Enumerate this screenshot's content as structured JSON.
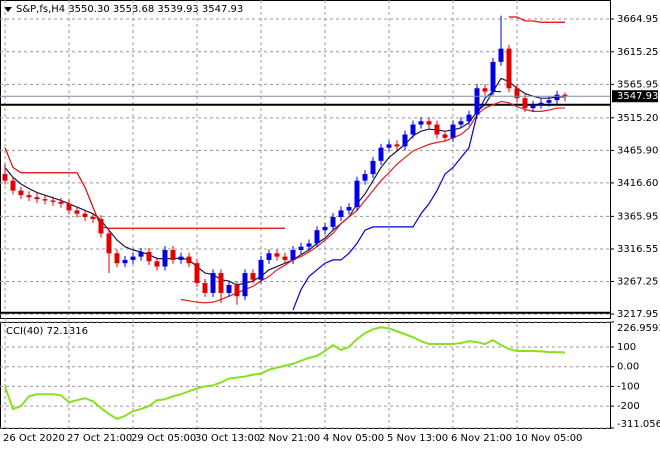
{
  "chart_data": [
    {
      "type": "candlestick",
      "title": "S&P,fs,H4  3550.30 3553.68 3539.93 3547.93",
      "categories": [
        "26 Oct 2020",
        null,
        null,
        null,
        null,
        null,
        null,
        null,
        "27 Oct 21:00",
        null,
        null,
        null,
        null,
        null,
        null,
        null,
        "29 Oct 05:00",
        null,
        null,
        null,
        null,
        null,
        null,
        null,
        "30 Oct 13:00",
        null,
        null,
        null,
        null,
        null,
        null,
        null,
        "2 Nov 21:00",
        null,
        null,
        null,
        null,
        null,
        null,
        null,
        "4 Nov 05:00",
        null,
        null,
        null,
        null,
        null,
        null,
        null,
        "5 Nov 13:00",
        null,
        null,
        null,
        null,
        null,
        null,
        null,
        "6 Nov 21:00",
        null,
        null,
        null,
        null,
        null,
        null,
        null,
        "10 Nov 05:00",
        null,
        null,
        null,
        null,
        null,
        null
      ],
      "open": [
        3430,
        3420,
        3405,
        3398,
        3395,
        3392,
        3390,
        3388,
        3385,
        3375,
        3370,
        3365,
        3362,
        3340,
        3310,
        3295,
        3300,
        3305,
        3312,
        3298,
        3290,
        3315,
        3300,
        3305,
        3295,
        3265,
        3250,
        3280,
        3250,
        3262,
        3245,
        3280,
        3270,
        3300,
        3310,
        3305,
        3300,
        3315,
        3320,
        3325,
        3345,
        3350,
        3365,
        3375,
        3380,
        3420,
        3430,
        3450,
        3470,
        3475,
        3472,
        3490,
        3505,
        3510,
        3505,
        3490,
        3485,
        3505,
        3510,
        3520,
        3560,
        3555,
        3600,
        3620,
        3560,
        3545,
        3530,
        3535,
        3538,
        3542,
        3550.3
      ],
      "high": [
        3445,
        3426,
        3411,
        3404,
        3401,
        3398,
        3396,
        3394,
        3391,
        3381,
        3376,
        3371,
        3368,
        3346,
        3316,
        3306,
        3311,
        3318,
        3318,
        3304,
        3321,
        3321,
        3311,
        3311,
        3301,
        3271,
        3286,
        3286,
        3268,
        3268,
        3286,
        3286,
        3306,
        3316,
        3316,
        3311,
        3321,
        3326,
        3331,
        3351,
        3356,
        3371,
        3381,
        3386,
        3426,
        3436,
        3456,
        3476,
        3481,
        3481,
        3496,
        3511,
        3516,
        3516,
        3511,
        3496,
        3511,
        3516,
        3526,
        3566,
        3566,
        3606,
        3670,
        3626,
        3566,
        3551,
        3541,
        3544,
        3548,
        3556,
        3553.68
      ],
      "low": [
        3414,
        3399,
        3392,
        3389,
        3386,
        3384,
        3382,
        3379,
        3369,
        3364,
        3359,
        3356,
        3334,
        3280,
        3289,
        3289,
        3294,
        3299,
        3292,
        3284,
        3284,
        3294,
        3294,
        3289,
        3259,
        3244,
        3244,
        3235,
        3244,
        3232,
        3239,
        3264,
        3264,
        3294,
        3299,
        3294,
        3294,
        3309,
        3314,
        3319,
        3339,
        3344,
        3359,
        3369,
        3374,
        3414,
        3424,
        3444,
        3464,
        3466,
        3466,
        3484,
        3499,
        3499,
        3484,
        3479,
        3479,
        3499,
        3504,
        3514,
        3549,
        3549,
        3594,
        3554,
        3539,
        3524,
        3524,
        3529,
        3532,
        3536,
        3539.93
      ],
      "close": [
        3420,
        3405,
        3398,
        3395,
        3392,
        3390,
        3388,
        3385,
        3375,
        3370,
        3365,
        3362,
        3340,
        3310,
        3295,
        3300,
        3305,
        3312,
        3298,
        3290,
        3315,
        3300,
        3305,
        3295,
        3265,
        3250,
        3280,
        3250,
        3262,
        3245,
        3280,
        3270,
        3300,
        3310,
        3305,
        3300,
        3315,
        3320,
        3325,
        3345,
        3350,
        3365,
        3375,
        3380,
        3420,
        3430,
        3450,
        3470,
        3475,
        3472,
        3490,
        3505,
        3510,
        3505,
        3490,
        3485,
        3505,
        3510,
        3520,
        3560,
        3555,
        3600,
        3620,
        3560,
        3545,
        3530,
        3535,
        3538,
        3542,
        3550.3,
        3547.93
      ],
      "up_color": "#0000e0",
      "down_color": "#e00000",
      "overlays": [
        {
          "color": "#1a1a40",
          "values": [
            3440,
            3425,
            3415,
            3408,
            3402,
            3398,
            3394,
            3390,
            3385,
            3380,
            3375,
            3370,
            3360,
            3345,
            3330,
            3320,
            3315,
            3312,
            3308,
            3302,
            3302,
            3302,
            3303,
            3300,
            3290,
            3280,
            3278,
            3270,
            3268,
            3262,
            3265,
            3268,
            3275,
            3285,
            3290,
            3295,
            3300,
            3308,
            3315,
            3325,
            3333,
            3345,
            3355,
            3365,
            3385,
            3400,
            3420,
            3440,
            3455,
            3465,
            3475,
            3488,
            3495,
            3498,
            3497,
            3495,
            3497,
            3500,
            3508,
            3525,
            3535,
            3555,
            3575,
            3570,
            3560,
            3552,
            3548,
            3545,
            3545,
            3547,
            3547
          ]
        },
        {
          "color": "#e02020",
          "values": [
            null,
            null,
            null,
            null,
            null,
            null,
            null,
            null,
            null,
            null,
            null,
            null,
            null,
            null,
            null,
            null,
            null,
            null,
            null,
            null,
            null,
            null,
            3240,
            3238,
            3236,
            3235,
            3236,
            3240,
            3245,
            3250,
            3255,
            3260,
            3268,
            3275,
            3285,
            3292,
            3300,
            3305,
            3312,
            3320,
            3330,
            3340,
            3355,
            3365,
            3375,
            3390,
            3405,
            3420,
            3432,
            3445,
            3455,
            3465,
            3470,
            3475,
            3478,
            3480,
            3485,
            3490,
            3500,
            3520,
            3530,
            3535,
            3540,
            3538,
            3532,
            3528,
            3525,
            3525,
            3527,
            3530,
            3530
          ]
        },
        {
          "color": "#0000d0",
          "values": [
            null,
            null,
            null,
            null,
            null,
            null,
            null,
            null,
            null,
            null,
            null,
            null,
            null,
            null,
            null,
            null,
            null,
            null,
            null,
            null,
            null,
            null,
            null,
            null,
            null,
            null,
            null,
            null,
            null,
            null,
            null,
            null,
            null,
            null,
            null,
            null,
            3224,
            3255,
            3275,
            3285,
            3295,
            3300,
            3300,
            3310,
            3325,
            3345,
            3350,
            3350,
            3350,
            3350,
            3350,
            3350,
            3370,
            3385,
            3405,
            3430,
            3440,
            3455,
            3470,
            3520,
            3545,
            3555,
            3555,
            null,
            null,
            null,
            null,
            null,
            null,
            null,
            null
          ]
        },
        {
          "color": "#e00000",
          "values": [
            3470,
            3440,
            3432,
            3432,
            3432,
            3432,
            3432,
            3432,
            3432,
            3432,
            3410,
            3380,
            3350,
            3348,
            3348,
            3348,
            3348,
            3348,
            3348,
            3348,
            3348,
            3348,
            3348,
            3348,
            3348,
            3348,
            3348,
            3348,
            3348,
            3348,
            3348,
            3348,
            3348,
            3348,
            3348,
            3348,
            null,
            null,
            null,
            null,
            null,
            null,
            null,
            null,
            null,
            null,
            null,
            null,
            null,
            null,
            null,
            null,
            null,
            null,
            null,
            null,
            null,
            null,
            null,
            null,
            null,
            null,
            null,
            3668,
            3668,
            3662,
            3662,
            3660,
            3660,
            3660,
            3660
          ]
        }
      ],
      "levels": [
        3535,
        3220
      ],
      "level_color": "#000000",
      "ylim": [
        3212,
        3693.7
      ],
      "yticks": [
        3664.95,
        3615.25,
        3565.95,
        {
          "value": 3515.2,
          "label": "3515.20"
        },
        {
          "value": 3465.9,
          "label": "3465.90"
        },
        {
          "value": 3416.6,
          "label": "3416.60"
        },
        3365.95,
        3316.55,
        3267.25,
        3217.95
      ],
      "grid": true
    },
    {
      "type": "line",
      "title": "CCI(40) 72.1316",
      "values": [
        -100,
        -215,
        -200,
        -150,
        -140,
        -140,
        -140,
        -145,
        -180,
        -170,
        -160,
        -175,
        -210,
        -240,
        -265,
        -250,
        -225,
        -215,
        -200,
        -170,
        -165,
        -150,
        -140,
        -125,
        -110,
        -100,
        -95,
        -80,
        -60,
        -55,
        -50,
        -40,
        -35,
        -15,
        -5,
        5,
        15,
        30,
        45,
        55,
        80,
        110,
        85,
        100,
        140,
        170,
        190,
        200,
        195,
        180,
        165,
        150,
        130,
        115,
        115,
        115,
        115,
        120,
        130,
        125,
        115,
        135,
        110,
        90,
        80,
        80,
        80,
        78,
        75,
        74,
        72.1316
      ],
      "color": "#88e020",
      "ylim": [
        -311.0563,
        226.9593
      ],
      "yticks": [
        226.9593,
        100,
        {
          "value": 0,
          "label": "0.00"
        },
        -100,
        -200,
        -311.0563
      ],
      "grid": true
    }
  ]
}
